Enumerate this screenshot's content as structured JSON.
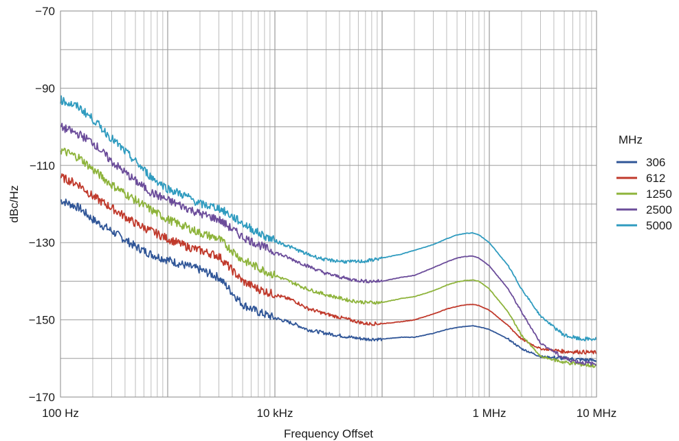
{
  "chart_data": {
    "type": "line",
    "title": "",
    "xlabel": "Frequency Offset",
    "ylabel": "dBc/Hz",
    "x_scale": "log",
    "xlim": [
      100,
      10000000
    ],
    "ylim": [
      -170,
      -70
    ],
    "x_ticks": [
      {
        "value": 100,
        "label": "100 Hz"
      },
      {
        "value": 10000,
        "label": "10 kHz"
      },
      {
        "value": 1000000,
        "label": "1 MHz"
      },
      {
        "value": 10000000,
        "label": "10 MHz"
      }
    ],
    "y_ticks": [
      {
        "value": -70,
        "label": "−70"
      },
      {
        "value": -90,
        "label": "−90"
      },
      {
        "value": -110,
        "label": "−110"
      },
      {
        "value": -130,
        "label": "−130"
      },
      {
        "value": -150,
        "label": "−150"
      },
      {
        "value": -170,
        "label": "−170"
      }
    ],
    "grid": true,
    "legend": {
      "title": "MHz",
      "position": "right"
    },
    "series": [
      {
        "name": "306",
        "color": "#2f5597",
        "points": [
          [
            100,
            -119
          ],
          [
            150,
            -121
          ],
          [
            200,
            -124
          ],
          [
            300,
            -127
          ],
          [
            500,
            -131
          ],
          [
            700,
            -133
          ],
          [
            1000,
            -134.5
          ],
          [
            1500,
            -136
          ],
          [
            2000,
            -137
          ],
          [
            3000,
            -139
          ],
          [
            5000,
            -146
          ],
          [
            7000,
            -148
          ],
          [
            10000,
            -149.5
          ],
          [
            15000,
            -151
          ],
          [
            20000,
            -152.5
          ],
          [
            30000,
            -153.5
          ],
          [
            50000,
            -154.5
          ],
          [
            70000,
            -155
          ],
          [
            100000,
            -155
          ],
          [
            150000,
            -154.5
          ],
          [
            200000,
            -154.5
          ],
          [
            300000,
            -153.5
          ],
          [
            400000,
            -152.5
          ],
          [
            500000,
            -152
          ],
          [
            600000,
            -151.7
          ],
          [
            700000,
            -151.5
          ],
          [
            800000,
            -151.8
          ],
          [
            1000000,
            -152.5
          ],
          [
            1500000,
            -155
          ],
          [
            2000000,
            -157.5
          ],
          [
            3000000,
            -159.5
          ],
          [
            5000000,
            -160
          ],
          [
            7000000,
            -160.3
          ],
          [
            10000000,
            -160.5
          ]
        ]
      },
      {
        "name": "612",
        "color": "#c0392b",
        "points": [
          [
            100,
            -113
          ],
          [
            150,
            -115
          ],
          [
            200,
            -118
          ],
          [
            300,
            -121
          ],
          [
            500,
            -125
          ],
          [
            700,
            -127
          ],
          [
            1000,
            -129
          ],
          [
            1500,
            -131
          ],
          [
            2000,
            -132
          ],
          [
            3000,
            -133.5
          ],
          [
            5000,
            -140
          ],
          [
            7000,
            -142
          ],
          [
            10000,
            -143.5
          ],
          [
            15000,
            -145
          ],
          [
            20000,
            -147
          ],
          [
            30000,
            -148.5
          ],
          [
            50000,
            -150
          ],
          [
            70000,
            -151
          ],
          [
            100000,
            -151
          ],
          [
            150000,
            -150.5
          ],
          [
            200000,
            -150
          ],
          [
            300000,
            -148.5
          ],
          [
            400000,
            -147.2
          ],
          [
            500000,
            -146.5
          ],
          [
            600000,
            -146.1
          ],
          [
            700000,
            -146
          ],
          [
            800000,
            -146.3
          ],
          [
            1000000,
            -147.5
          ],
          [
            1500000,
            -151.5
          ],
          [
            2000000,
            -155
          ],
          [
            3000000,
            -157.5
          ],
          [
            5000000,
            -158.2
          ],
          [
            7000000,
            -158.3
          ],
          [
            10000000,
            -158.5
          ]
        ]
      },
      {
        "name": "1250",
        "color": "#8db33a",
        "points": [
          [
            100,
            -106
          ],
          [
            150,
            -108
          ],
          [
            200,
            -111
          ],
          [
            300,
            -115
          ],
          [
            500,
            -119
          ],
          [
            700,
            -121.5
          ],
          [
            1000,
            -124
          ],
          [
            1500,
            -126
          ],
          [
            2000,
            -127.5
          ],
          [
            3000,
            -129
          ],
          [
            5000,
            -134.5
          ],
          [
            7000,
            -136.5
          ],
          [
            10000,
            -138.5
          ],
          [
            15000,
            -140.5
          ],
          [
            20000,
            -142
          ],
          [
            30000,
            -143.5
          ],
          [
            50000,
            -145
          ],
          [
            70000,
            -145.5
          ],
          [
            100000,
            -145.5
          ],
          [
            150000,
            -144.5
          ],
          [
            200000,
            -144
          ],
          [
            300000,
            -142.5
          ],
          [
            400000,
            -141
          ],
          [
            500000,
            -140.2
          ],
          [
            600000,
            -139.8
          ],
          [
            700000,
            -139.7
          ],
          [
            800000,
            -140
          ],
          [
            1000000,
            -142
          ],
          [
            1500000,
            -148
          ],
          [
            2000000,
            -154
          ],
          [
            3000000,
            -159.5
          ],
          [
            5000000,
            -161
          ],
          [
            7000000,
            -161.5
          ],
          [
            10000000,
            -162
          ]
        ]
      },
      {
        "name": "2500",
        "color": "#6b4c9a",
        "points": [
          [
            100,
            -100
          ],
          [
            150,
            -102
          ],
          [
            200,
            -104
          ],
          [
            300,
            -109
          ],
          [
            500,
            -114
          ],
          [
            700,
            -117
          ],
          [
            1000,
            -119
          ],
          [
            1500,
            -121
          ],
          [
            2000,
            -122.5
          ],
          [
            3000,
            -124
          ],
          [
            5000,
            -128.5
          ],
          [
            7000,
            -130.5
          ],
          [
            10000,
            -132.5
          ],
          [
            15000,
            -134.5
          ],
          [
            20000,
            -136
          ],
          [
            30000,
            -138
          ],
          [
            50000,
            -139.5
          ],
          [
            70000,
            -140
          ],
          [
            100000,
            -140
          ],
          [
            150000,
            -139
          ],
          [
            200000,
            -138.5
          ],
          [
            300000,
            -136.5
          ],
          [
            400000,
            -135
          ],
          [
            500000,
            -134
          ],
          [
            600000,
            -133.6
          ],
          [
            700000,
            -133.5
          ],
          [
            800000,
            -134
          ],
          [
            1000000,
            -136
          ],
          [
            1500000,
            -142
          ],
          [
            2000000,
            -148
          ],
          [
            3000000,
            -156
          ],
          [
            5000000,
            -160
          ],
          [
            7000000,
            -161
          ],
          [
            10000000,
            -161.5
          ]
        ]
      },
      {
        "name": "5000",
        "color": "#2f9bbf",
        "points": [
          [
            100,
            -93
          ],
          [
            150,
            -95
          ],
          [
            200,
            -98
          ],
          [
            300,
            -103
          ],
          [
            500,
            -109
          ],
          [
            700,
            -113
          ],
          [
            1000,
            -116
          ],
          [
            1500,
            -118
          ],
          [
            2000,
            -120
          ],
          [
            3000,
            -121
          ],
          [
            5000,
            -125
          ],
          [
            7000,
            -127.5
          ],
          [
            10000,
            -129.5
          ],
          [
            15000,
            -131.5
          ],
          [
            20000,
            -133
          ],
          [
            30000,
            -134.5
          ],
          [
            50000,
            -135
          ],
          [
            70000,
            -134.8
          ],
          [
            100000,
            -134
          ],
          [
            150000,
            -133
          ],
          [
            200000,
            -132
          ],
          [
            300000,
            -130.5
          ],
          [
            400000,
            -129
          ],
          [
            500000,
            -128
          ],
          [
            600000,
            -127.6
          ],
          [
            700000,
            -127.5
          ],
          [
            800000,
            -128
          ],
          [
            1000000,
            -130
          ],
          [
            1500000,
            -136
          ],
          [
            2000000,
            -142
          ],
          [
            3000000,
            -149
          ],
          [
            5000000,
            -154
          ],
          [
            7000000,
            -155
          ],
          [
            10000000,
            -155
          ]
        ]
      }
    ]
  }
}
